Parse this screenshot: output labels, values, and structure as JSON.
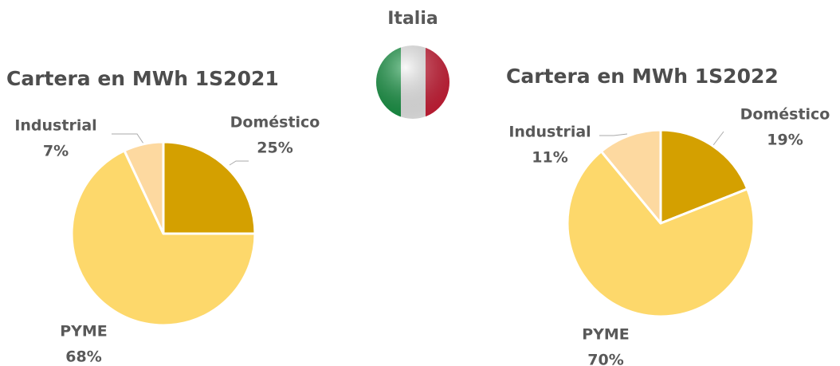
{
  "title": "Italia",
  "chart_data": [
    {
      "type": "pie",
      "title": "Cartera en MWh 1S2021",
      "categories": [
        "Doméstico",
        "PYME",
        "Industrial"
      ],
      "values": [
        25,
        68,
        7
      ],
      "value_labels": [
        "25%",
        "68%",
        "7%"
      ],
      "colors": [
        "#d4a000",
        "#fdd86b",
        "#fdd9a0"
      ]
    },
    {
      "type": "pie",
      "title": "Cartera en MWh 1S2022",
      "categories": [
        "Doméstico",
        "PYME",
        "Industrial"
      ],
      "values": [
        19,
        70,
        11
      ],
      "value_labels": [
        "19%",
        "70%",
        "11%"
      ],
      "colors": [
        "#d4a000",
        "#fdd86b",
        "#fdd9a0"
      ]
    }
  ]
}
